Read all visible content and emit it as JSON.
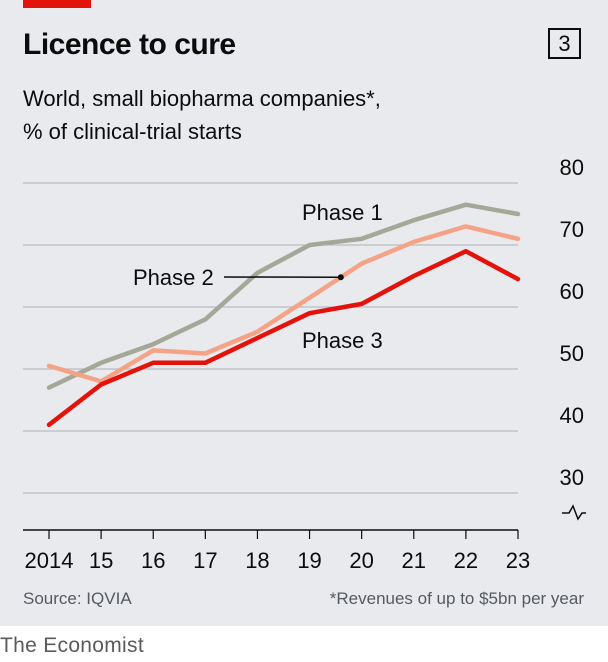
{
  "header": {
    "title": "Licence to cure",
    "badge": "3",
    "subtitle_line1": "World, small biopharma companies*,",
    "subtitle_line2": "% of clinical-trial starts"
  },
  "footer": {
    "source": "Source: IQVIA",
    "footnote": "*Revenues of up to $5bn per year",
    "brand": "The Economist"
  },
  "colors": {
    "phase1": "#a5a898",
    "phase2": "#f5a387",
    "phase3": "#e3120b",
    "accent": "#e3120b"
  },
  "chart_data": {
    "type": "line",
    "x": [
      "2014",
      "15",
      "16",
      "17",
      "18",
      "19",
      "20",
      "21",
      "22",
      "23"
    ],
    "ylim": [
      30,
      80
    ],
    "yticks": [
      30,
      40,
      50,
      60,
      70,
      80
    ],
    "y_axis_side": "right",
    "y_axis_break": true,
    "grid": true,
    "series": [
      {
        "name": "Phase 1",
        "values": [
          47,
          51,
          54,
          58,
          65.5,
          70,
          71,
          74,
          76.5,
          75
        ]
      },
      {
        "name": "Phase 2",
        "values": [
          50.5,
          48,
          53,
          52.5,
          56,
          61.5,
          67,
          70.5,
          73,
          71
        ]
      },
      {
        "name": "Phase 3",
        "values": [
          41,
          47.5,
          51,
          51,
          55,
          59,
          60.5,
          65,
          69,
          64.5
        ]
      }
    ]
  }
}
